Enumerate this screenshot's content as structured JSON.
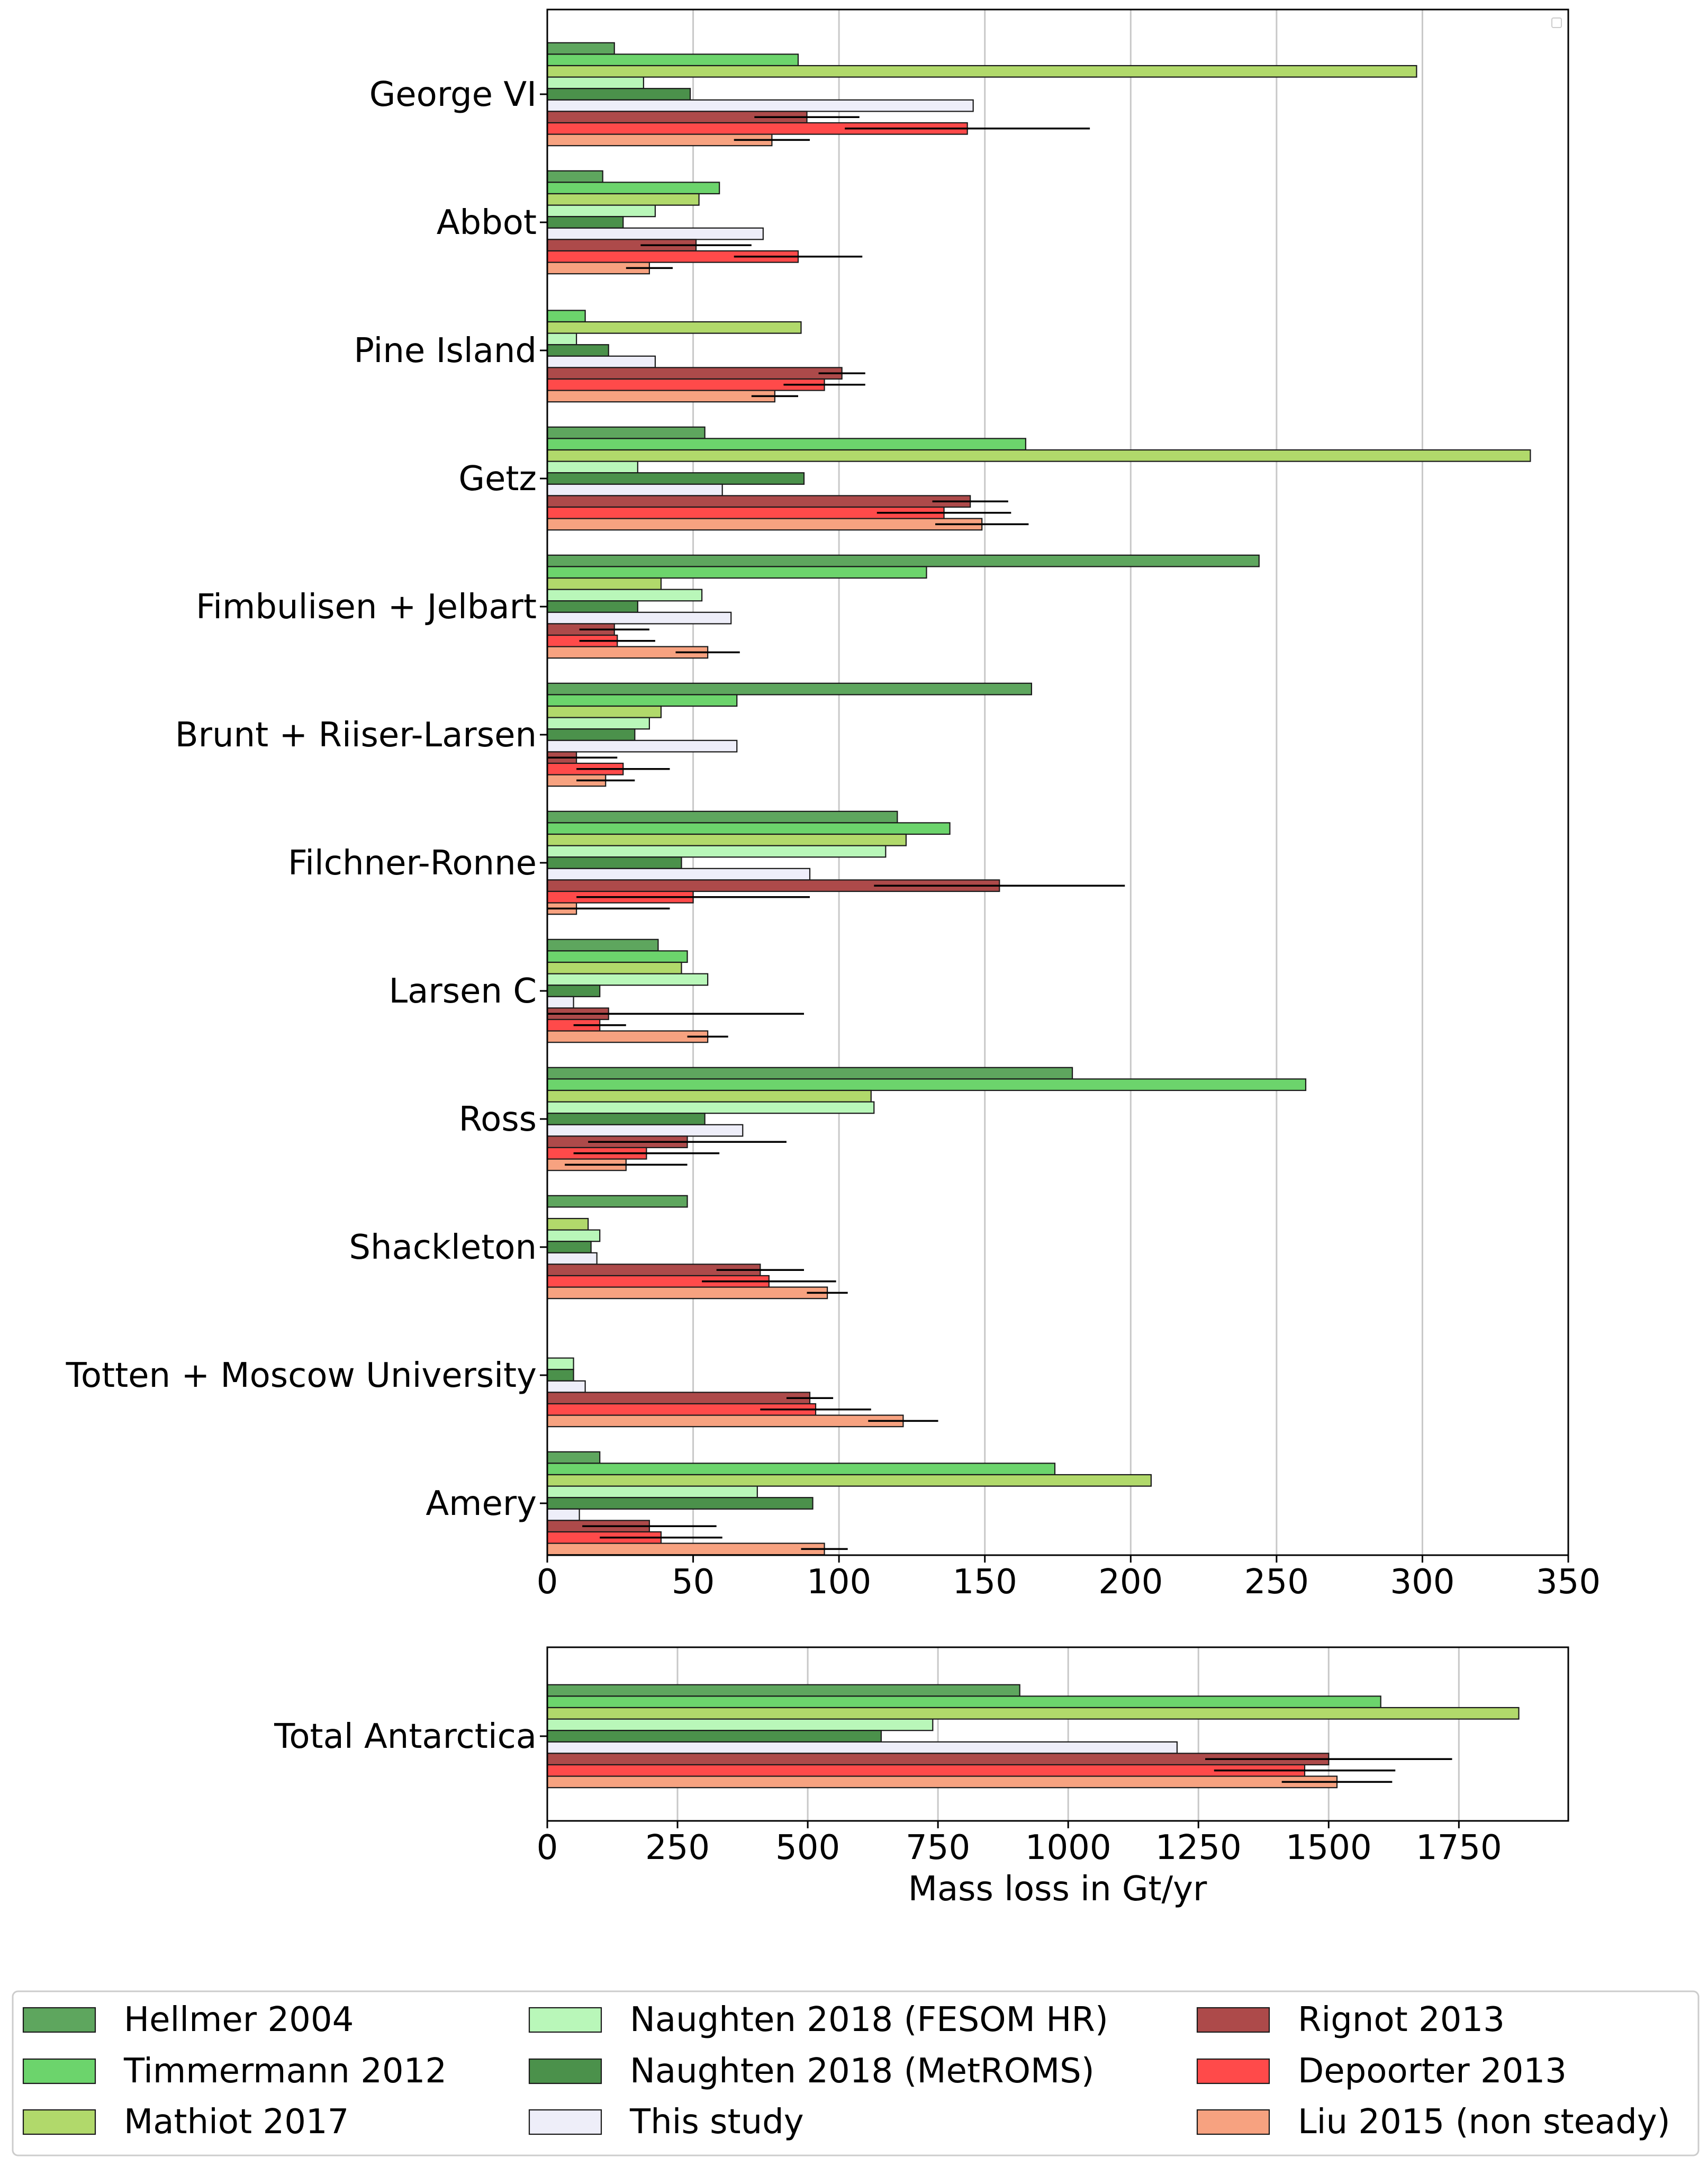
{
  "colors": {
    "Hellmer 2004": "#5ea65e",
    "Timmermann 2012": "#6cd46c",
    "Mathiot 2017": "#b1d96b",
    "Naughten 2018 (FESOM HR)": "#b9f7b9",
    "Naughten 2018 (MetROMS)": "#4b914b",
    "This study": "#eeeef9",
    "Rignot 2013": "#ad4a4a",
    "Depoorter 2013": "#ff4a4a",
    "Liu 2015 (non steady)": "#f7a280"
  },
  "chart_data": [
    {
      "type": "bar",
      "orientation": "horizontal",
      "categories": [
        "George VI",
        "Abbot",
        "Pine Island",
        "Getz",
        "Fimbulisen + Jelbart",
        "Brunt + Riiser-Larsen",
        "Filchner-Ronne",
        "Larsen C",
        "Ross",
        "Shackleton",
        "Totten + Moscow University",
        "Amery"
      ],
      "xlim": [
        0,
        350
      ],
      "xticks": [
        0,
        50,
        100,
        150,
        200,
        250,
        300,
        350
      ],
      "xlabel": "",
      "grid": "vertical",
      "series": [
        {
          "name": "Hellmer 2004",
          "values": [
            23,
            19,
            0,
            54,
            244,
            166,
            120,
            38,
            180,
            48,
            0,
            18
          ]
        },
        {
          "name": "Timmermann 2012",
          "values": [
            86,
            59,
            13,
            164,
            130,
            65,
            138,
            48,
            260,
            0,
            0,
            174
          ]
        },
        {
          "name": "Mathiot 2017",
          "values": [
            298,
            52,
            87,
            337,
            39,
            39,
            123,
            46,
            111,
            14,
            0,
            207
          ]
        },
        {
          "name": "Naughten 2018 (FESOM HR)",
          "values": [
            33,
            37,
            10,
            31,
            53,
            35,
            116,
            55,
            112,
            18,
            9,
            72
          ]
        },
        {
          "name": "Naughten 2018 (MetROMS)",
          "values": [
            49,
            26,
            21,
            88,
            31,
            30,
            46,
            18,
            54,
            15,
            9,
            91
          ]
        },
        {
          "name": "This study",
          "values": [
            146,
            74,
            37,
            60,
            63,
            65,
            90,
            9,
            67,
            17,
            13,
            11
          ]
        },
        {
          "name": "Rignot 2013",
          "values": [
            89,
            51,
            101,
            145,
            23,
            10,
            155,
            21,
            48,
            73,
            90,
            35
          ],
          "errors": [
            18,
            19,
            8,
            13,
            12,
            14,
            43,
            67,
            34,
            15,
            8,
            23
          ]
        },
        {
          "name": "Depoorter 2013",
          "values": [
            144,
            86,
            95,
            136,
            24,
            26,
            50,
            18,
            34,
            76,
            92,
            39
          ],
          "errors": [
            42,
            22,
            14,
            23,
            13,
            16,
            40,
            9,
            25,
            23,
            19,
            21
          ]
        },
        {
          "name": "Liu 2015 (non steady)",
          "values": [
            77,
            35,
            78,
            149,
            55,
            20,
            10,
            55,
            27,
            96,
            122,
            95
          ],
          "errors": [
            13,
            8,
            8,
            16,
            11,
            10,
            32,
            7,
            21,
            7,
            12,
            8
          ]
        }
      ]
    },
    {
      "type": "bar",
      "orientation": "horizontal",
      "categories": [
        "Total Antarctica"
      ],
      "xlim": [
        0,
        1960
      ],
      "xticks": [
        0,
        250,
        500,
        750,
        1000,
        1250,
        1500,
        1750
      ],
      "xlabel": "Mass loss in Gt/yr",
      "grid": "vertical",
      "series": [
        {
          "name": "Hellmer 2004",
          "values": [
            907
          ]
        },
        {
          "name": "Timmermann 2012",
          "values": [
            1600
          ]
        },
        {
          "name": "Mathiot 2017",
          "values": [
            1865
          ]
        },
        {
          "name": "Naughten 2018 (FESOM HR)",
          "values": [
            740
          ]
        },
        {
          "name": "Naughten 2018 (MetROMS)",
          "values": [
            641
          ]
        },
        {
          "name": "This study",
          "values": [
            1209
          ]
        },
        {
          "name": "Rignot 2013",
          "values": [
            1500
          ],
          "errors": [
            237
          ]
        },
        {
          "name": "Depoorter 2013",
          "values": [
            1454
          ],
          "errors": [
            174
          ]
        },
        {
          "name": "Liu 2015 (non steady)",
          "values": [
            1516
          ],
          "errors": [
            106
          ]
        }
      ]
    }
  ],
  "legend": {
    "placement": "bottom",
    "items": [
      "Hellmer 2004",
      "Timmermann 2012",
      "Mathiot 2017",
      "Naughten 2018 (FESOM HR)",
      "Naughten 2018 (MetROMS)",
      "This study",
      "Rignot 2013",
      "Depoorter 2013",
      "Liu 2015 (non steady)"
    ]
  }
}
